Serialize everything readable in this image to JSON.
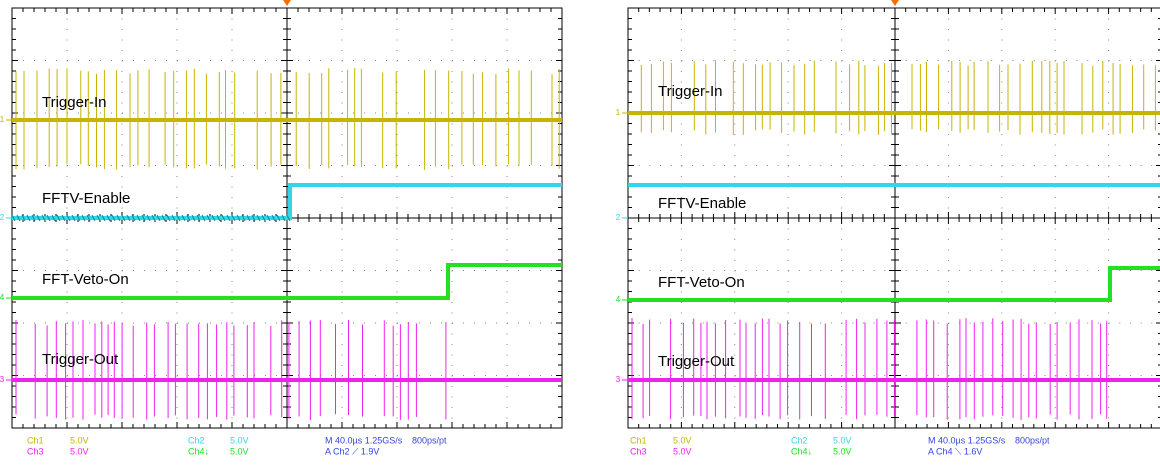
{
  "panels": [
    {
      "traces": [
        {
          "marker": "1",
          "label": "Trigger-In"
        },
        {
          "marker": "2",
          "label": "FFTV-Enable"
        },
        {
          "marker": "4",
          "label": "FFT-Veto-On"
        },
        {
          "marker": "3",
          "label": "Trigger-Out"
        }
      ],
      "readout": {
        "ch1": "Ch1",
        "ch1_scale": "5.0V",
        "ch2": "Ch2",
        "ch2_scale": "5.0V",
        "ch3": "Ch3",
        "ch3_scale": "5.0V",
        "ch4": "Ch4↓",
        "ch4_scale": "5.0V",
        "timebase": "M 40.0µs 1.25GS/s",
        "resolution": "800ps/pt",
        "trigger": "A  Ch2  ⟋  1.9V"
      }
    },
    {
      "traces": [
        {
          "marker": "1",
          "label": "Trigger-In"
        },
        {
          "marker": "2",
          "label": "FFTV-Enable"
        },
        {
          "marker": "4",
          "label": "FFT-Veto-On"
        },
        {
          "marker": "3",
          "label": "Trigger-Out"
        }
      ],
      "readout": {
        "ch1": "Ch1",
        "ch1_scale": "5.0V",
        "ch2": "Ch2",
        "ch2_scale": "5.0V",
        "ch3": "Ch3",
        "ch3_scale": "5.0V",
        "ch4": "Ch4↓",
        "ch4_scale": "5.0V",
        "timebase": "M 40.0µs 1.25GS/s",
        "resolution": "800ps/pt",
        "trigger": "A  Ch4  ⟍  1.6V"
      }
    }
  ]
}
